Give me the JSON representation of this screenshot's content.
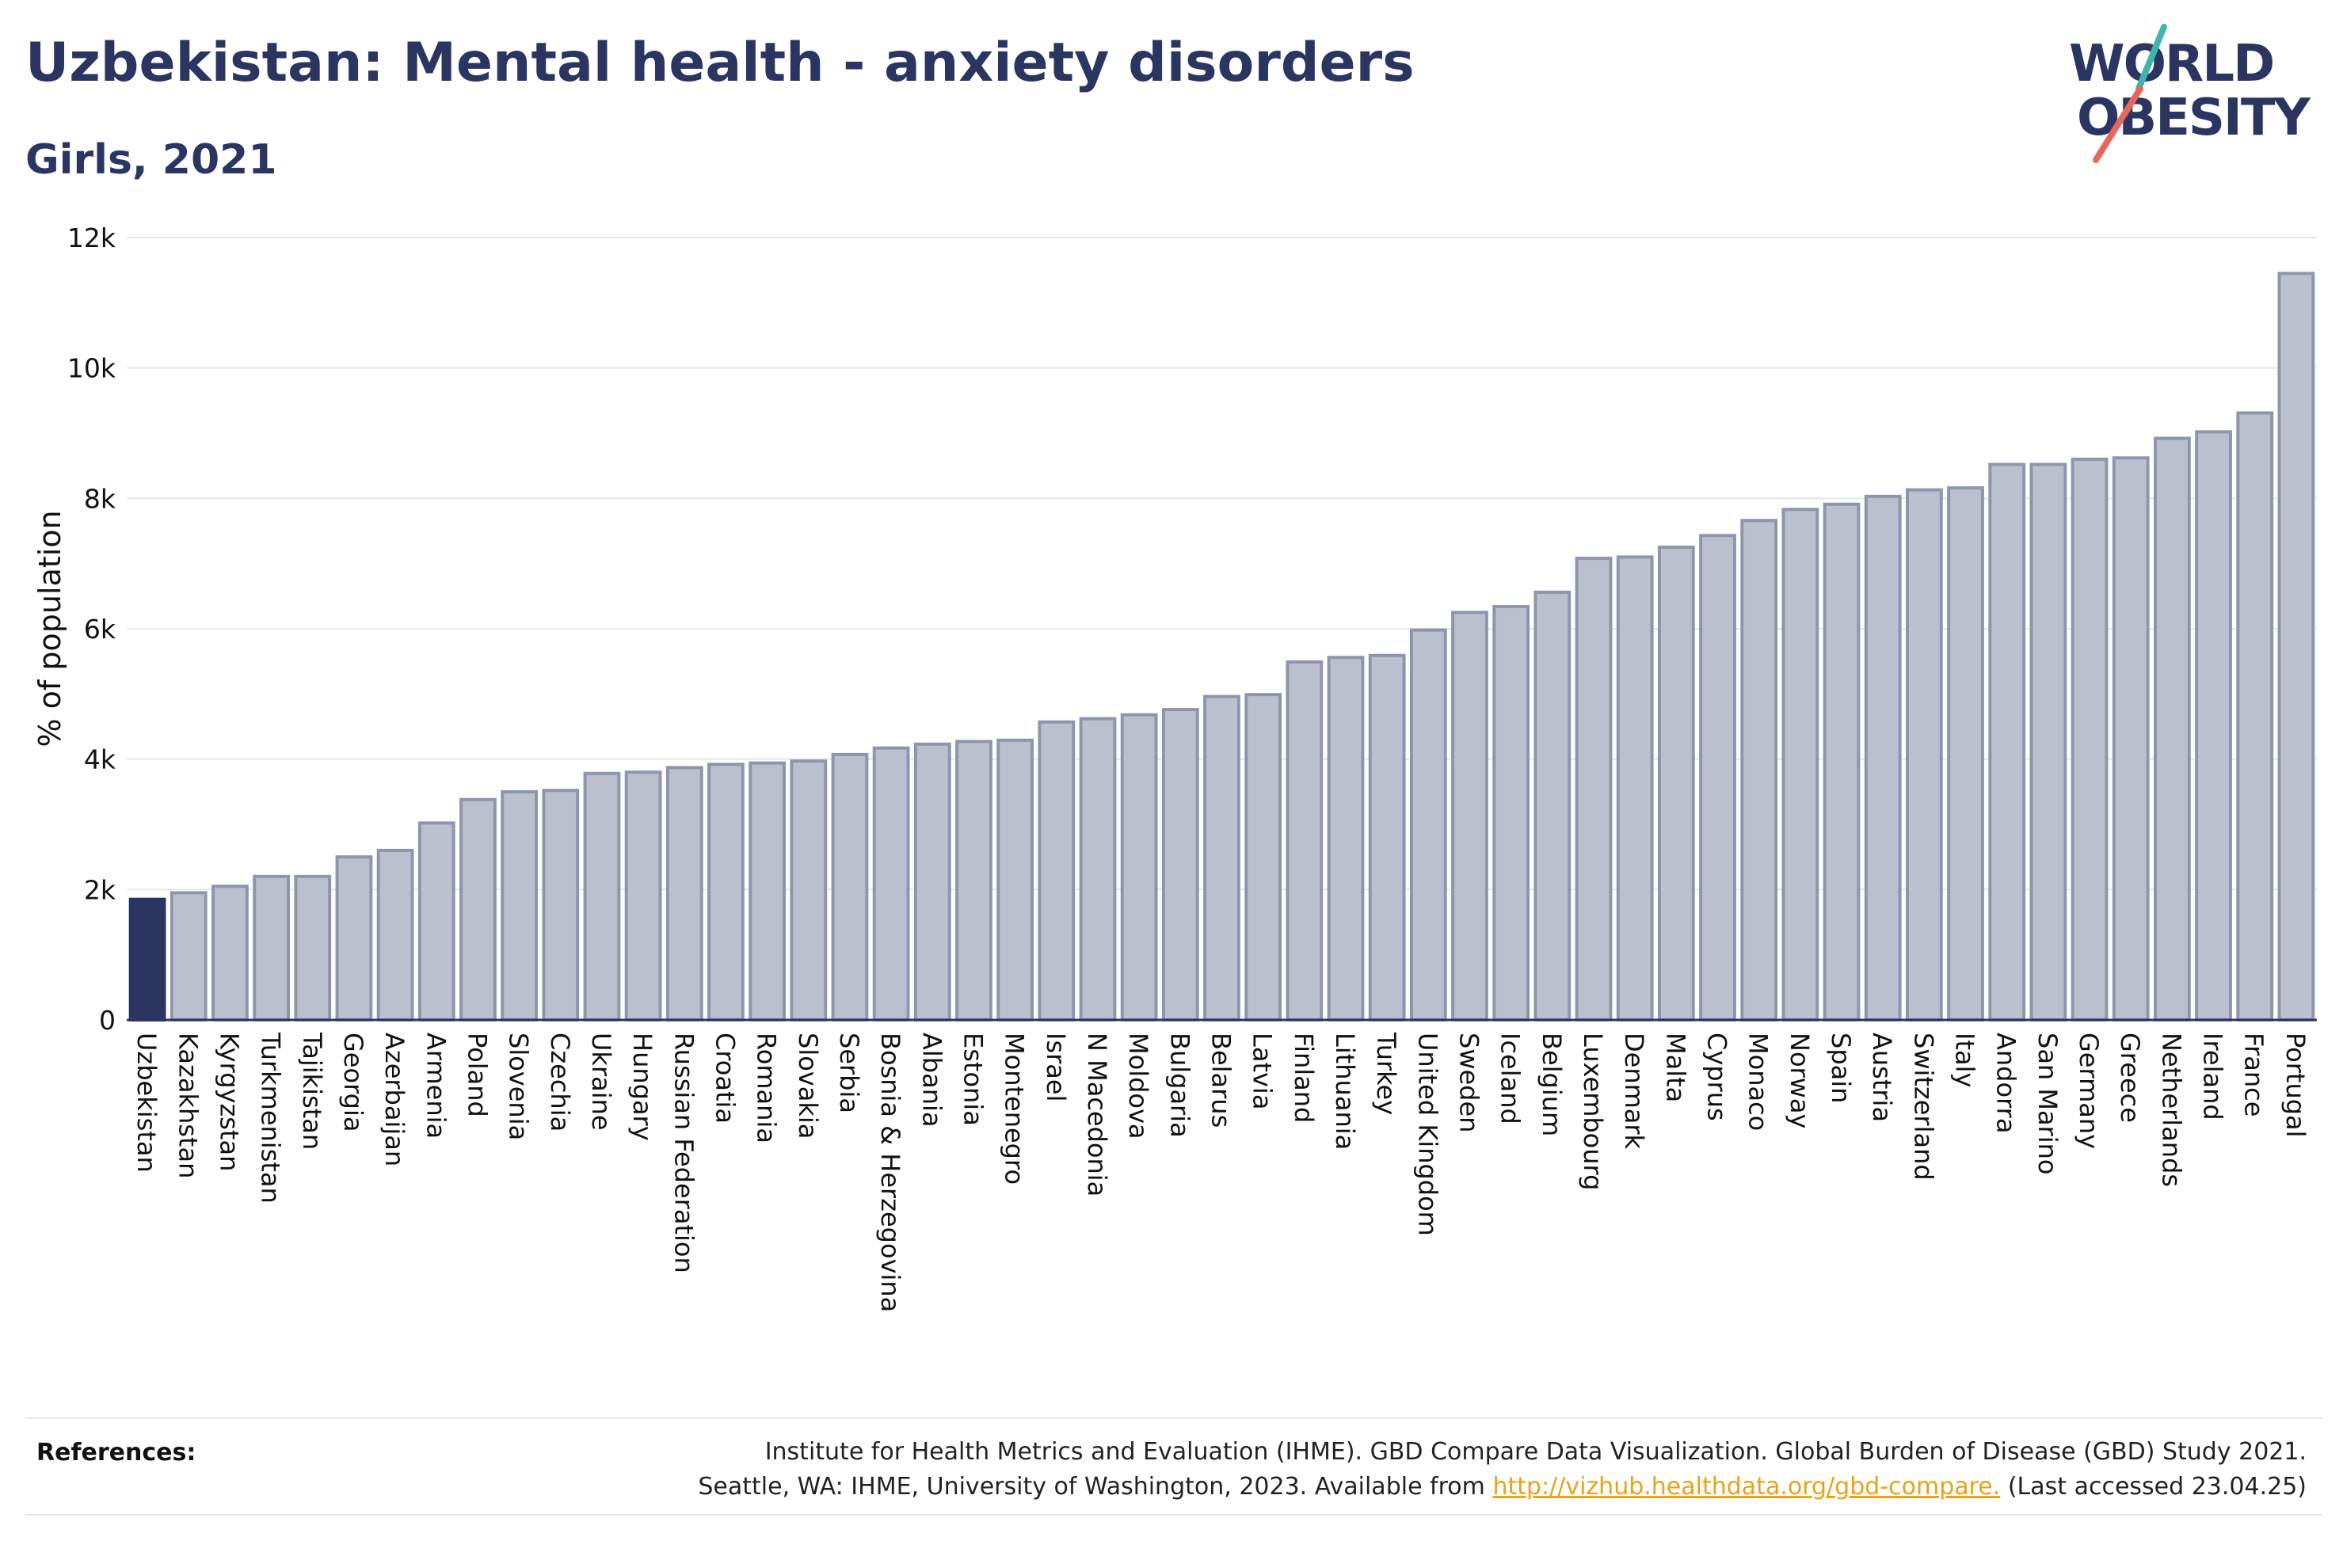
{
  "title": "Uzbekistan: Mental health - anxiety disorders",
  "subtitle": "Girls, 2021",
  "logo": {
    "line1": "WORLD",
    "line2": "OBESITY"
  },
  "references": {
    "label": "References:",
    "line1": "Institute for Health Metrics and Evaluation (IHME). GBD Compare Data Visualization. Global Burden of Disease (GBD) Study 2021.",
    "line2_before": "Seattle, WA: IHME, University of Washington, 2023. Available from",
    "link": "http://vizhub.healthdata.org/gbd-compare.",
    "line2_after": "(Last accessed 23.04.25)"
  },
  "colors": {
    "highlight": "#2b3561",
    "bar_fill": "#bcc0ce",
    "bar_stroke": "#8f95ad",
    "grid": "#e6e6e6",
    "text": "#2b3561"
  },
  "chart_data": {
    "type": "bar",
    "ylabel": "% of population",
    "ylim": [
      0,
      12000
    ],
    "yticks": [
      0,
      2000,
      4000,
      6000,
      8000,
      10000,
      12000
    ],
    "ytick_labels": [
      "0",
      "2k",
      "4k",
      "6k",
      "8k",
      "10k",
      "12k"
    ],
    "grid": true,
    "highlight": "Uzbekistan",
    "categories": [
      "Uzbekistan",
      "Kazakhstan",
      "Kyrgyzstan",
      "Turkmenistan",
      "Tajikistan",
      "Georgia",
      "Azerbaijan",
      "Armenia",
      "Poland",
      "Slovenia",
      "Czechia",
      "Ukraine",
      "Hungary",
      "Russian Federation",
      "Croatia",
      "Romania",
      "Slovakia",
      "Serbia",
      "Bosnia & Herzegovina",
      "Albania",
      "Estonia",
      "Montenegro",
      "Israel",
      "N Macedonia",
      "Moldova",
      "Bulgaria",
      "Belarus",
      "Latvia",
      "Finland",
      "Lithuania",
      "Turkey",
      "United Kingdom",
      "Sweden",
      "Iceland",
      "Belgium",
      "Luxembourg",
      "Denmark",
      "Malta",
      "Cyprus",
      "Monaco",
      "Norway",
      "Spain",
      "Austria",
      "Switzerland",
      "Italy",
      "Andorra",
      "San Marino",
      "Germany",
      "Greece",
      "Netherlands",
      "Ireland",
      "France",
      "Portugal"
    ],
    "values": [
      1850,
      1950,
      2050,
      2200,
      2200,
      2500,
      2600,
      3020,
      3380,
      3500,
      3520,
      3780,
      3800,
      3870,
      3920,
      3940,
      3970,
      4070,
      4170,
      4230,
      4270,
      4290,
      4570,
      4620,
      4680,
      4760,
      4960,
      4990,
      5490,
      5560,
      5590,
      5980,
      6250,
      6340,
      6560,
      7080,
      7100,
      7250,
      7430,
      7660,
      7830,
      7910,
      8030,
      8130,
      8160,
      8520,
      8520,
      8600,
      8620,
      8920,
      9020,
      9310,
      11450
    ]
  }
}
